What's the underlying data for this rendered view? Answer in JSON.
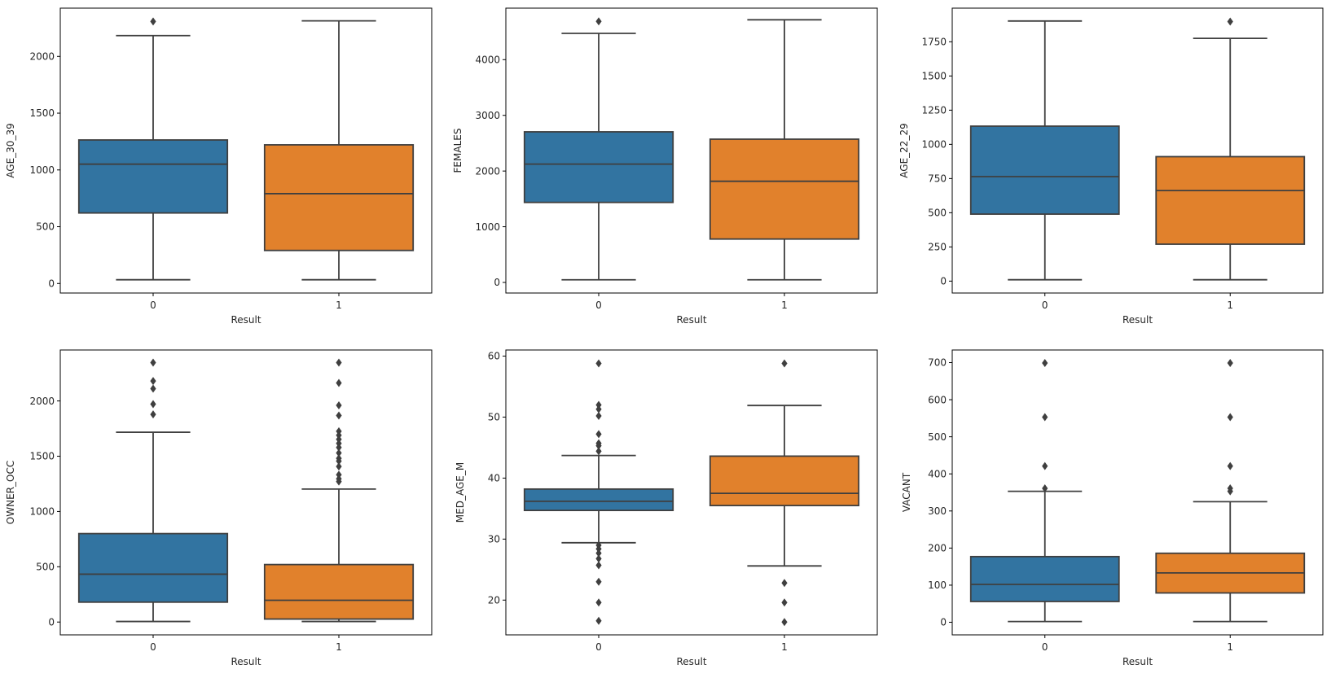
{
  "chart_data": [
    {
      "type": "box",
      "xlabel": "Result",
      "ylabel": "AGE_30_39",
      "categories": [
        "0",
        "1"
      ],
      "ylim": [
        -84,
        2425
      ],
      "yticks": [
        0,
        500,
        1000,
        1500,
        2000
      ],
      "boxes": [
        {
          "category": "0",
          "q1": 621,
          "median": 1051,
          "q3": 1264,
          "whisker_low": 33,
          "whisker_high": 2183,
          "outliers": [
            2308
          ]
        },
        {
          "category": "1",
          "q1": 291,
          "median": 791,
          "q3": 1221,
          "whisker_low": 33,
          "whisker_high": 2313,
          "outliers": []
        }
      ]
    },
    {
      "type": "box",
      "xlabel": "Result",
      "ylabel": "FEMALES",
      "categories": [
        "0",
        "1"
      ],
      "ylim": [
        -190,
        4925
      ],
      "yticks": [
        0,
        1000,
        2000,
        3000,
        4000
      ],
      "boxes": [
        {
          "category": "0",
          "q1": 1437,
          "median": 2124,
          "q3": 2704,
          "whisker_low": 48,
          "whisker_high": 4472,
          "outliers": [
            4687
          ]
        },
        {
          "category": "1",
          "q1": 779,
          "median": 1817,
          "q3": 2572,
          "whisker_low": 48,
          "whisker_high": 4716,
          "outliers": []
        }
      ]
    },
    {
      "type": "box",
      "xlabel": "Result",
      "ylabel": "AGE_22_29",
      "categories": [
        "0",
        "1"
      ],
      "ylim": [
        -87,
        1996
      ],
      "yticks": [
        0,
        250,
        500,
        750,
        1000,
        1250,
        1500,
        1750
      ],
      "boxes": [
        {
          "category": "0",
          "q1": 490,
          "median": 764,
          "q3": 1133,
          "whisker_low": 10,
          "whisker_high": 1902,
          "outliers": []
        },
        {
          "category": "1",
          "q1": 270,
          "median": 662,
          "q3": 910,
          "whisker_low": 10,
          "whisker_high": 1775,
          "outliers": [
            1898
          ]
        }
      ]
    },
    {
      "type": "box",
      "xlabel": "Result",
      "ylabel": "OWNER_OCC",
      "categories": [
        "0",
        "1"
      ],
      "ylim": [
        -116,
        2461
      ],
      "yticks": [
        0,
        500,
        1000,
        1500,
        2000
      ],
      "boxes": [
        {
          "category": "0",
          "q1": 180,
          "median": 433,
          "q3": 800,
          "whisker_low": 5,
          "whisker_high": 1717,
          "outliers": [
            2347,
            2180,
            2111,
            1971,
            1878
          ]
        },
        {
          "category": "1",
          "q1": 27,
          "median": 197,
          "q3": 520,
          "whisker_low": 5,
          "whisker_high": 1203,
          "outliers": [
            2347,
            2163,
            1960,
            1868,
            1726,
            1690,
            1653,
            1616,
            1579,
            1530,
            1481,
            1456,
            1407,
            1333,
            1296,
            1271
          ]
        }
      ]
    },
    {
      "type": "box",
      "xlabel": "Result",
      "ylabel": "MED_AGE_M",
      "categories": [
        "0",
        "1"
      ],
      "ylim": [
        14.3,
        61.0
      ],
      "yticks": [
        20,
        30,
        40,
        50,
        60
      ],
      "boxes": [
        {
          "category": "0",
          "q1": 34.7,
          "median": 36.2,
          "q3": 38.2,
          "whisker_low": 29.4,
          "whisker_high": 43.7,
          "outliers": [
            58.8,
            52.0,
            51.3,
            50.2,
            47.2,
            45.7,
            45.3,
            44.4,
            29.0,
            28.4,
            27.7,
            26.8,
            25.7,
            23.0,
            19.6,
            16.6
          ]
        },
        {
          "category": "1",
          "q1": 35.5,
          "median": 37.5,
          "q3": 43.6,
          "whisker_low": 25.6,
          "whisker_high": 51.9,
          "outliers": [
            58.8,
            22.8,
            19.6,
            16.4
          ]
        }
      ]
    },
    {
      "type": "box",
      "xlabel": "Result",
      "ylabel": "VACANT",
      "categories": [
        "0",
        "1"
      ],
      "ylim": [
        -34,
        734
      ],
      "yticks": [
        0,
        100,
        200,
        300,
        400,
        500,
        600,
        700
      ],
      "boxes": [
        {
          "category": "0",
          "q1": 56,
          "median": 102,
          "q3": 177,
          "whisker_low": 2,
          "whisker_high": 353,
          "outliers": [
            699,
            553,
            421,
            361
          ]
        },
        {
          "category": "1",
          "q1": 79,
          "median": 133,
          "q3": 186,
          "whisker_low": 2,
          "whisker_high": 325,
          "outliers": [
            699,
            553,
            421,
            361,
            353
          ]
        }
      ]
    }
  ],
  "colors": {
    "box_0": "#3274a1",
    "box_1": "#e1812c",
    "lines": "#3f3f3f",
    "axes": "#000000"
  }
}
